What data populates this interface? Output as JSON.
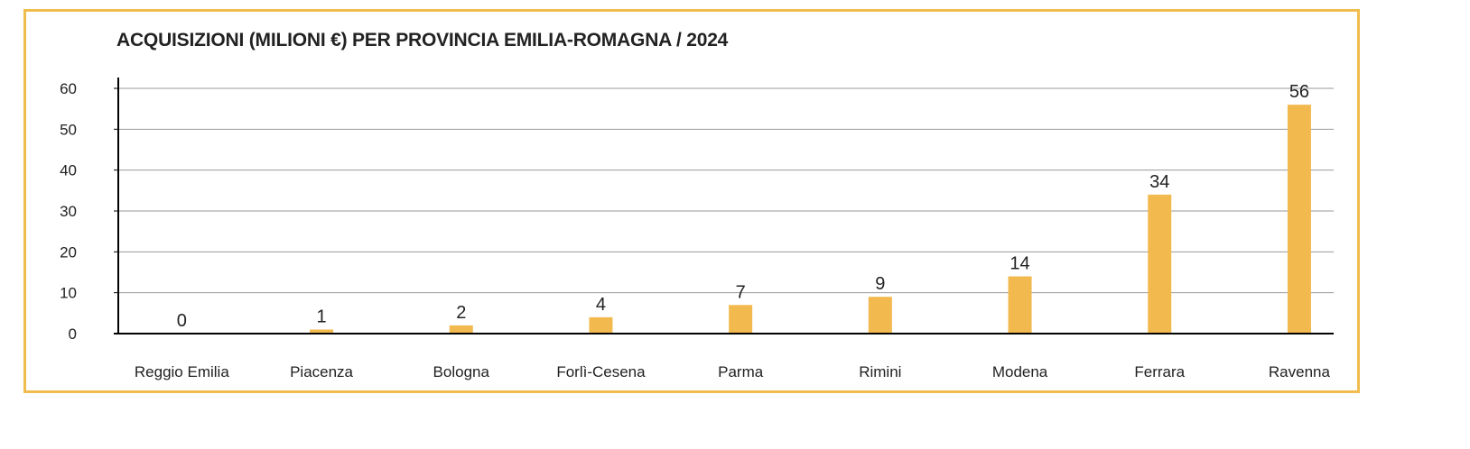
{
  "colors": {
    "frame": "#f0bc4e",
    "bar": "#f2b94f",
    "grid": "#9a9a9a",
    "axis": "#000000"
  },
  "chart_data": {
    "type": "bar",
    "title": "ACQUISIZIONI (MILIONI €) PER PROVINCIA EMILIA-ROMAGNA / 2024",
    "xlabel": "",
    "ylabel": "",
    "ylim": [
      0,
      60
    ],
    "yticks": [
      0,
      10,
      20,
      30,
      40,
      50,
      60
    ],
    "grid": true,
    "categories": [
      "Reggio Emilia",
      "Piacenza",
      "Bologna",
      "Forlì-Cesena",
      "Parma",
      "Rimini",
      "Modena",
      "Ferrara",
      "Ravenna"
    ],
    "values": [
      0,
      1,
      2,
      4,
      7,
      9,
      14,
      34,
      56
    ],
    "data_labels": [
      "0",
      "1",
      "2",
      "4",
      "7",
      "9",
      "14",
      "34",
      "56"
    ]
  }
}
